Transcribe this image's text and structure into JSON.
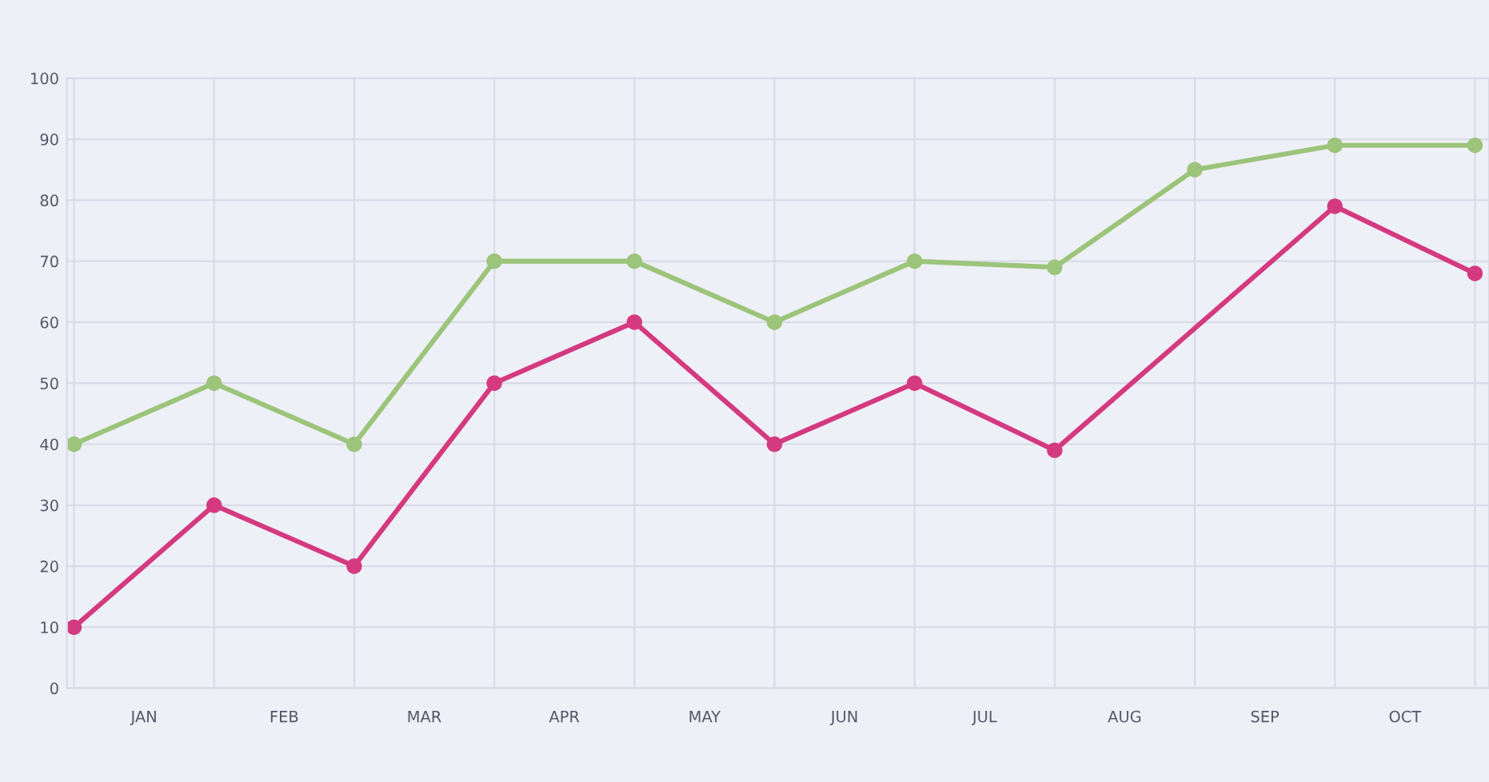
{
  "chart_data": {
    "type": "line",
    "categories": [
      null,
      null,
      null,
      null,
      null,
      null,
      null,
      null,
      null,
      null,
      null
    ],
    "series": [
      {
        "color": "#9cc47a",
        "values": [
          40,
          50,
          40,
          70,
          70,
          60,
          70,
          69,
          85,
          89,
          89
        ]
      },
      {
        "color": "#d43a80",
        "values": [
          10,
          30,
          20,
          50,
          60,
          40,
          50,
          39,
          null,
          79,
          68
        ]
      }
    ],
    "annotations": [
      "JAN",
      "FEB",
      "MAR",
      "APR",
      "MAY",
      "JUN",
      "JUL",
      "AUG",
      "SEP",
      "OCT"
    ],
    "ylim": [
      0,
      100
    ],
    "yticks": [
      0,
      10,
      20,
      30,
      40,
      50,
      60,
      70,
      80,
      90,
      100
    ],
    "grid": true,
    "legend": false,
    "marker": "circle",
    "line_style": "solid"
  }
}
